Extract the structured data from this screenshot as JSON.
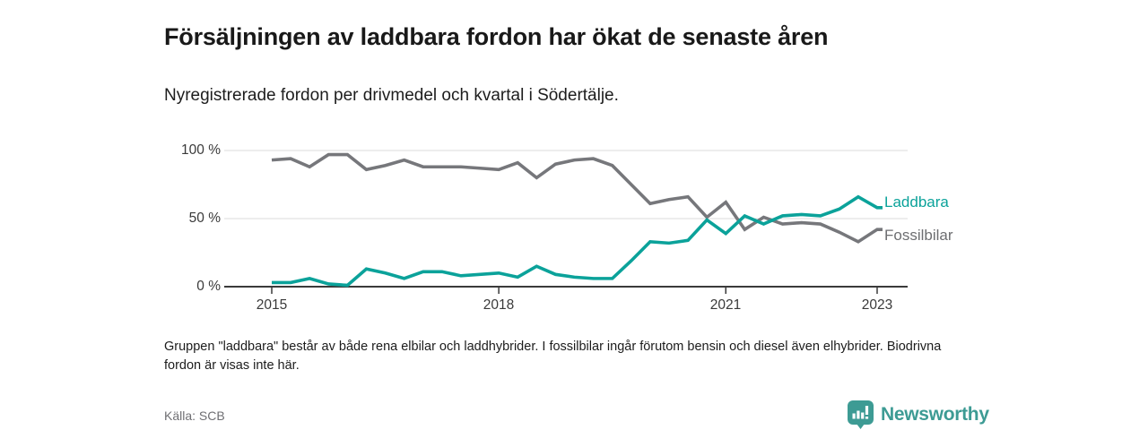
{
  "header": {
    "title": "Försäljningen av laddbara fordon har ökat de senaste åren",
    "subtitle": "Nyregistrerade fordon per drivmedel och kvartal i Södertälje."
  },
  "chart_data": {
    "type": "line",
    "x_tick_labels": [
      "2015",
      "2018",
      "2021",
      "2023"
    ],
    "x_tick_positions": [
      0,
      12,
      24,
      32
    ],
    "y_tick_labels": [
      "100 %",
      "50 %",
      "0 %"
    ],
    "y_gridlines": [
      100,
      50
    ],
    "ylim": [
      0,
      100
    ],
    "x_description": "Quarterly, 2015 Q1 to 2023 Q1 (33 points)",
    "legend_position": "right-end-of-lines",
    "series": [
      {
        "name": "Laddbara",
        "color": "#0ba29a",
        "values": [
          3,
          3,
          6,
          2,
          1,
          13,
          10,
          6,
          11,
          11,
          8,
          9,
          10,
          7,
          15,
          9,
          7,
          6,
          6,
          19,
          33,
          32,
          34,
          49,
          39,
          52,
          46,
          52,
          53,
          52,
          57,
          66,
          58
        ]
      },
      {
        "name": "Fossilbilar",
        "color": "#76777b",
        "values": [
          93,
          94,
          88,
          97,
          97,
          86,
          89,
          93,
          88,
          88,
          88,
          87,
          86,
          91,
          80,
          90,
          93,
          94,
          89,
          75,
          61,
          64,
          66,
          51,
          62,
          42,
          51,
          46,
          47,
          46,
          40,
          33,
          42
        ]
      }
    ]
  },
  "footnote": "Gruppen \"laddbara\" består av både rena elbilar och laddhybrider. I fossilbilar ingår förutom bensin och diesel även elhybrider. Biodrivna fordon är visas inte här.",
  "source": "Källa: SCB",
  "logo": {
    "text": "Newsworthy"
  }
}
